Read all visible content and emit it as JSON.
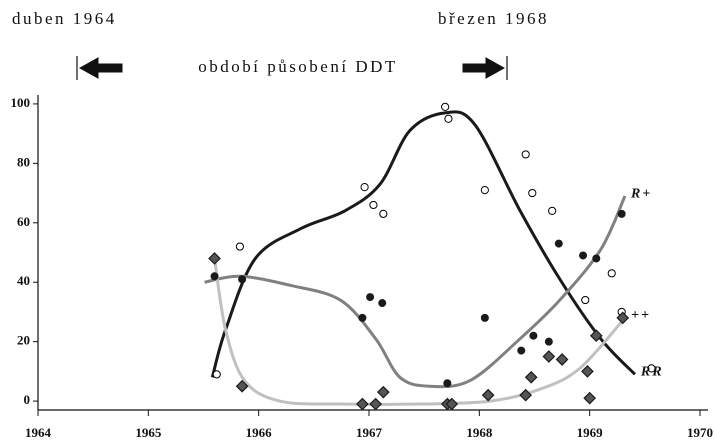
{
  "chart_data": {
    "type": "scatter",
    "annotations": {
      "start": "duben 1964",
      "end": "březen 1968",
      "period": "období působení DDT"
    },
    "xlim": [
      1964,
      1970
    ],
    "xticks": [
      1964,
      1965,
      1966,
      1967,
      1968,
      1969,
      1970
    ],
    "ylim": [
      -3,
      103
    ],
    "yticks": [
      0,
      20,
      40,
      60,
      80,
      100
    ],
    "series": [
      {
        "name": "RR",
        "marker": "open-circle",
        "color": "#000000",
        "x": [
          1965.62,
          1965.83,
          1966.96,
          1967.04,
          1967.13,
          1967.69,
          1967.72,
          1968.05,
          1968.42,
          1968.48,
          1968.66,
          1968.96,
          1969.2,
          1969.29,
          1969.56
        ],
        "values": [
          9,
          52,
          72,
          66,
          63,
          99,
          95,
          71,
          83,
          70,
          64,
          34,
          43,
          30,
          11
        ],
        "curve_color": "#1a1a1a",
        "curve_x": [
          1965.58,
          1965.7,
          1965.97,
          1966.38,
          1966.78,
          1967.1,
          1967.37,
          1967.69,
          1967.96,
          1968.37,
          1968.73,
          1969.1,
          1969.41
        ],
        "curve_y": [
          8,
          24,
          48,
          58,
          64,
          73,
          91,
          97,
          93,
          64,
          41,
          21,
          9
        ]
      },
      {
        "name": "R+",
        "marker": "filled-circle",
        "color": "#1a1a1a",
        "x": [
          1965.6,
          1965.85,
          1966.94,
          1967.01,
          1967.12,
          1967.71,
          1968.05,
          1968.38,
          1968.49,
          1968.63,
          1968.72,
          1968.94,
          1969.06,
          1969.29
        ],
        "values": [
          42,
          41,
          28,
          35,
          33,
          6,
          28,
          17,
          22,
          20,
          53,
          49,
          48,
          63
        ],
        "curve_color": "#808080",
        "curve_x": [
          1965.51,
          1965.83,
          1966.28,
          1966.74,
          1967.06,
          1967.28,
          1967.55,
          1967.92,
          1968.37,
          1968.73,
          1969.1,
          1969.32
        ],
        "curve_y": [
          40,
          42,
          39,
          34,
          21,
          8,
          5,
          7,
          21,
          34,
          51,
          69
        ]
      },
      {
        "name": "++",
        "marker": "diamond",
        "color": "#1a1a1a",
        "x": [
          1965.6,
          1965.85,
          1966.94,
          1967.06,
          1967.13,
          1967.71,
          1967.75,
          1968.08,
          1968.42,
          1968.47,
          1968.63,
          1968.75,
          1968.98,
          1969.0,
          1969.06,
          1969.3
        ],
        "values": [
          48,
          5,
          -1,
          -1,
          3,
          -1,
          -1,
          2,
          2,
          8,
          15,
          14,
          10,
          1,
          22,
          28
        ],
        "curve_color": "#c0c0c0",
        "curve_x": [
          1965.6,
          1965.7,
          1965.87,
          1966.19,
          1966.74,
          1967.46,
          1968.1,
          1968.55,
          1968.91,
          1969.32
        ],
        "curve_y": [
          48,
          24,
          7,
          0,
          -1,
          -1,
          0,
          4,
          11,
          28
        ]
      }
    ]
  }
}
